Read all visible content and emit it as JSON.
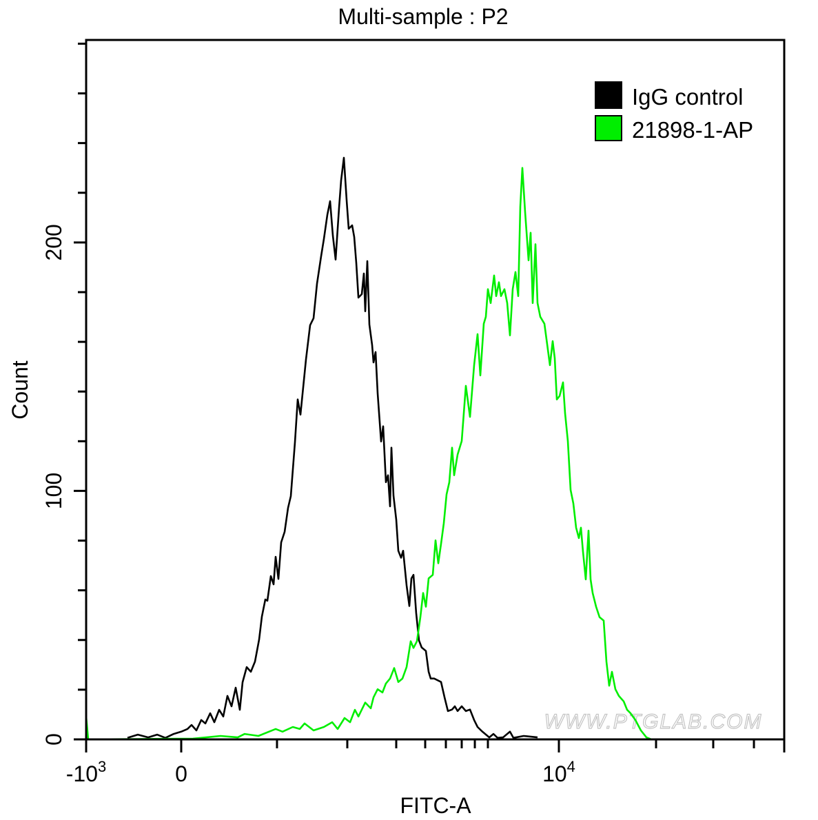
{
  "chart_data": {
    "type": "line",
    "title": "Multi-sample : P2",
    "xlabel": "FITC-A",
    "ylabel": "Count",
    "x_units": "channel",
    "xlim": [
      0,
      1000
    ],
    "ylim": [
      0,
      281.5
    ],
    "grid": false,
    "legend_position": "top-right",
    "y_ticks": [
      {
        "value": 0,
        "label": "0"
      },
      {
        "value": 100,
        "label": "100"
      },
      {
        "value": 200,
        "label": "200"
      }
    ],
    "y_minor_ticks": [
      20,
      40,
      60,
      80,
      120,
      140,
      160,
      180,
      220,
      240,
      260,
      280
    ],
    "x_ticks": [
      {
        "value": 0,
        "label": "-10",
        "sup": "3"
      },
      {
        "value": 136.2,
        "label": "0",
        "sup": ""
      },
      {
        "value": 677.2,
        "label": "10",
        "sup": "4"
      }
    ],
    "x_minor_ticks": [
      273.4,
      374.1,
      444.2,
      485.7,
      515.3,
      538.0,
      556.8,
      575.5,
      816.4,
      898.3,
      956.6
    ],
    "series": [
      {
        "name": "IgG control",
        "color": "#000000",
        "points": [
          [
            59.2,
            0.6
          ],
          [
            74.0,
            1.9
          ],
          [
            88.8,
            0.8
          ],
          [
            101.7,
            1.9
          ],
          [
            113.5,
            0.6
          ],
          [
            125.4,
            2.2
          ],
          [
            136.2,
            3.1
          ],
          [
            145.1,
            4.2
          ],
          [
            151.0,
            5.8
          ],
          [
            157.9,
            3.6
          ],
          [
            164.9,
            7.8
          ],
          [
            170.8,
            6.4
          ],
          [
            177.7,
            10.5
          ],
          [
            183.6,
            6.9
          ],
          [
            190.5,
            11.9
          ],
          [
            196.4,
            9.2
          ],
          [
            202.4,
            17.5
          ],
          [
            208.3,
            13.3
          ],
          [
            214.2,
            20.8
          ],
          [
            220.1,
            11.9
          ],
          [
            224.1,
            23.0
          ],
          [
            230.0,
            29.1
          ],
          [
            235.9,
            27.2
          ],
          [
            241.9,
            31.3
          ],
          [
            247.8,
            40.2
          ],
          [
            251.7,
            49.4
          ],
          [
            256.7,
            56.3
          ],
          [
            259.6,
            55.8
          ],
          [
            264.6,
            65.7
          ],
          [
            268.5,
            62.4
          ],
          [
            271.5,
            73.5
          ],
          [
            275.4,
            64.6
          ],
          [
            279.4,
            79.3
          ],
          [
            284.3,
            83.5
          ],
          [
            289.2,
            93.2
          ],
          [
            293.2,
            97.9
          ],
          [
            299.1,
            119.6
          ],
          [
            303.1,
            136.8
          ],
          [
            307.0,
            130.7
          ],
          [
            311.0,
            141.8
          ],
          [
            314.9,
            152.9
          ],
          [
            320.8,
            166.7
          ],
          [
            325.8,
            169.5
          ],
          [
            330.7,
            183.4
          ],
          [
            336.6,
            194.5
          ],
          [
            340.6,
            201.4
          ],
          [
            345.5,
            211.1
          ],
          [
            349.5,
            216.6
          ],
          [
            353.4,
            202.8
          ],
          [
            357.4,
            193.1
          ],
          [
            362.3,
            213.9
          ],
          [
            365.3,
            225.0
          ],
          [
            369.2,
            234.1
          ],
          [
            373.2,
            216.6
          ],
          [
            376.1,
            205.5
          ],
          [
            381.0,
            206.9
          ],
          [
            384.0,
            202.2
          ],
          [
            387.0,
            191.7
          ],
          [
            390.0,
            177.8
          ],
          [
            394.9,
            179.2
          ],
          [
            397.8,
            187.5
          ],
          [
            399.8,
            172.3
          ],
          [
            402.8,
            192.5
          ],
          [
            405.7,
            167.0
          ],
          [
            409.7,
            158.7
          ],
          [
            411.6,
            151.7
          ],
          [
            414.6,
            155.9
          ],
          [
            417.6,
            139.3
          ],
          [
            422.5,
            119.9
          ],
          [
            425.5,
            126.0
          ],
          [
            429.4,
            103.5
          ],
          [
            432.4,
            106.3
          ],
          [
            435.3,
            93.8
          ],
          [
            437.3,
            117.4
          ],
          [
            440.3,
            98.1
          ],
          [
            444.2,
            88.4
          ],
          [
            447.2,
            75.9
          ],
          [
            451.1,
            73.1
          ],
          [
            454.1,
            75.9
          ],
          [
            459.0,
            62.0
          ],
          [
            463.0,
            53.7
          ],
          [
            465.9,
            64.8
          ],
          [
            468.9,
            66.2
          ],
          [
            472.8,
            50.9
          ],
          [
            476.8,
            39.8
          ],
          [
            480.7,
            37.0
          ],
          [
            486.7,
            35.6
          ],
          [
            490.6,
            27.2
          ],
          [
            493.6,
            24.5
          ],
          [
            498.5,
            24.5
          ],
          [
            508.4,
            23.1
          ],
          [
            513.3,
            17.0
          ],
          [
            518.3,
            11.4
          ],
          [
            524.2,
            12.0
          ],
          [
            528.1,
            13.3
          ],
          [
            532.1,
            11.4
          ],
          [
            538.0,
            13.3
          ],
          [
            543.9,
            11.4
          ],
          [
            549.9,
            12.0
          ],
          [
            555.8,
            7.8
          ],
          [
            560.7,
            5.0
          ],
          [
            567.6,
            3.1
          ],
          [
            577.5,
            0.8
          ],
          [
            583.4,
            2.2
          ],
          [
            589.3,
            0.6
          ],
          [
            597.2,
            0.8
          ],
          [
            607.1,
            3.1
          ],
          [
            612.0,
            0.6
          ],
          [
            626.8,
            1.4
          ],
          [
            646.6,
            0.8
          ]
        ]
      },
      {
        "name": "21898-1-AP",
        "color": "#00ee00",
        "points": [
          [
            0,
            9.2
          ],
          [
            3.0,
            0
          ],
          [
            153.0,
            0.3
          ],
          [
            192.5,
            1.4
          ],
          [
            217.2,
            0.8
          ],
          [
            227.0,
            2.2
          ],
          [
            246.8,
            1.4
          ],
          [
            271.5,
            4.2
          ],
          [
            281.3,
            3.1
          ],
          [
            296.1,
            5.0
          ],
          [
            306.0,
            4.2
          ],
          [
            312.9,
            6.4
          ],
          [
            325.8,
            3.6
          ],
          [
            340.6,
            5.0
          ],
          [
            352.4,
            6.9
          ],
          [
            360.3,
            4.2
          ],
          [
            370.2,
            8.6
          ],
          [
            378.1,
            6.9
          ],
          [
            385.0,
            11.9
          ],
          [
            390.0,
            9.2
          ],
          [
            399.8,
            14.8
          ],
          [
            407.7,
            12.5
          ],
          [
            411.6,
            16.9
          ],
          [
            417.6,
            20.2
          ],
          [
            424.5,
            18.9
          ],
          [
            429.4,
            22.5
          ],
          [
            435.3,
            24.5
          ],
          [
            441.3,
            28.7
          ],
          [
            447.2,
            23.1
          ],
          [
            453.1,
            24.5
          ],
          [
            459.0,
            29.1
          ],
          [
            465.0,
            39.5
          ],
          [
            468.9,
            36.8
          ],
          [
            473.8,
            39.5
          ],
          [
            478.8,
            49.2
          ],
          [
            482.7,
            58.9
          ],
          [
            486.7,
            53.4
          ],
          [
            490.6,
            64.8
          ],
          [
            496.5,
            66.2
          ],
          [
            500.5,
            80.1
          ],
          [
            504.4,
            70.9
          ],
          [
            508.4,
            78.7
          ],
          [
            512.3,
            87.0
          ],
          [
            516.3,
            98.6
          ],
          [
            520.2,
            103.5
          ],
          [
            524.2,
            117.4
          ],
          [
            527.1,
            106.3
          ],
          [
            532.1,
            114.6
          ],
          [
            538.0,
            120.1
          ],
          [
            543.9,
            142.3
          ],
          [
            549.9,
            129.8
          ],
          [
            555.8,
            150.6
          ],
          [
            560.7,
            163.1
          ],
          [
            564.7,
            146.5
          ],
          [
            569.6,
            167.3
          ],
          [
            572.6,
            170.1
          ],
          [
            575.5,
            181.2
          ],
          [
            579.5,
            175.6
          ],
          [
            584.4,
            186.7
          ],
          [
            587.4,
            178.4
          ],
          [
            591.3,
            184.0
          ],
          [
            594.3,
            178.4
          ],
          [
            599.2,
            181.2
          ],
          [
            603.2,
            175.6
          ],
          [
            607.1,
            162.6
          ],
          [
            611.1,
            181.2
          ],
          [
            615.0,
            188.1
          ],
          [
            619.0,
            178.4
          ],
          [
            621.9,
            214.4
          ],
          [
            624.9,
            230.0
          ],
          [
            628.8,
            212.2
          ],
          [
            633.8,
            192.8
          ],
          [
            636.7,
            203.9
          ],
          [
            639.7,
            175.6
          ],
          [
            643.6,
            199.3
          ],
          [
            646.6,
            175.6
          ],
          [
            650.5,
            170.1
          ],
          [
            656.5,
            167.3
          ],
          [
            660.4,
            159.0
          ],
          [
            664.4,
            150.6
          ],
          [
            668.3,
            160.3
          ],
          [
            671.3,
            153.4
          ],
          [
            674.2,
            136.8
          ],
          [
            678.2,
            138.2
          ],
          [
            683.1,
            143.7
          ],
          [
            686.1,
            131.2
          ],
          [
            690.0,
            120.1
          ],
          [
            694.0,
            100.4
          ],
          [
            697.9,
            94.9
          ],
          [
            701.9,
            85.2
          ],
          [
            705.8,
            81.0
          ],
          [
            708.8,
            85.2
          ],
          [
            711.7,
            75.5
          ],
          [
            715.7,
            64.4
          ],
          [
            719.6,
            84.0
          ],
          [
            722.6,
            64.4
          ],
          [
            725.6,
            58.9
          ],
          [
            730.5,
            53.4
          ],
          [
            735.4,
            49.2
          ],
          [
            741.4,
            47.8
          ],
          [
            745.3,
            31.3
          ],
          [
            749.3,
            21.6
          ],
          [
            753.2,
            27.2
          ],
          [
            758.1,
            20.2
          ],
          [
            763.1,
            17.5
          ],
          [
            770.0,
            15.3
          ],
          [
            774.9,
            11.9
          ],
          [
            779.9,
            10.5
          ],
          [
            786.8,
            7.8
          ],
          [
            794.7,
            3.6
          ],
          [
            802.6,
            0.8
          ],
          [
            809.5,
            0
          ]
        ]
      }
    ],
    "legend": [
      {
        "label": "IgG control",
        "color": "#000000"
      },
      {
        "label": "21898-1-AP",
        "color": "#00ee00"
      }
    ],
    "watermark": "WWW.PTGLAB.COM"
  }
}
